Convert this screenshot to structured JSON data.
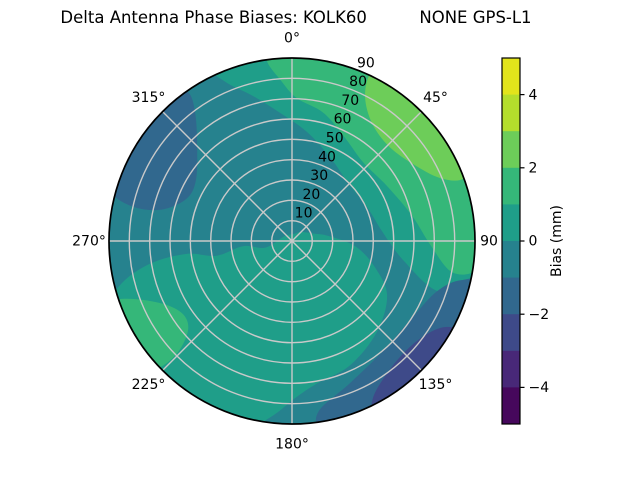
{
  "title": "Delta Antenna Phase Biases: KOLK60          NONE GPS-L1",
  "chart_data": {
    "type": "heatmap",
    "subtype": "filled-contour-polar",
    "title": "Delta Antenna Phase Biases: KOLK60          NONE GPS-L1",
    "station": "KOLK60",
    "signal": "NONE GPS-L1",
    "angular_axis": {
      "direction": "clockwise",
      "zero_location": "top",
      "tick_labels": [
        {
          "az": 0,
          "label": "0°"
        },
        {
          "az": 45,
          "label": "45°"
        },
        {
          "az": 90,
          "label": "90"
        },
        {
          "az": 135,
          "label": "135°"
        },
        {
          "az": 180,
          "label": "180°"
        },
        {
          "az": 225,
          "label": "225°"
        },
        {
          "az": 270,
          "label": "270°"
        },
        {
          "az": 315,
          "label": "315°"
        }
      ]
    },
    "radial_axis": {
      "min": 0,
      "max": 90,
      "tick_values": [
        10,
        20,
        30,
        40,
        50,
        60,
        70,
        80,
        90
      ],
      "tick_labels": [
        "10",
        "20",
        "30",
        "40",
        "50",
        "60",
        "70",
        "80",
        "90"
      ],
      "label_azimuth_deg": 22.5
    },
    "colorbar": {
      "label": "Bias (mm)",
      "vmin": -5,
      "vmax": 5,
      "tick_values": [
        4,
        2,
        0,
        -2,
        -4
      ],
      "tick_labels": [
        "4",
        "2",
        "0",
        "−2",
        "−4"
      ],
      "colormap": "viridis",
      "n_bands": 10,
      "band_colors_bottom_to_top": [
        "#46085c",
        "#482878",
        "#3e4a89",
        "#31688e",
        "#26828e",
        "#1f9e89",
        "#35b779",
        "#6dcd59",
        "#b4de2c",
        "#e2e41b"
      ]
    },
    "grid": {
      "rings": 8,
      "spokes_every_deg": 45,
      "color": "#c9c9c9"
    },
    "base_field": {
      "name": "bias-minus1-to-0-background",
      "bias_range_mm": [
        -1,
        0
      ],
      "color": "#26828e"
    },
    "regions": [
      {
        "name": "bias-0-to-1-south",
        "bias_range_mm": [
          0,
          1
        ],
        "color": "#1f9e89",
        "points_az_rfrac": [
          [
            70,
            0.12
          ],
          [
            82,
            0.2
          ],
          [
            95,
            0.35
          ],
          [
            108,
            0.48
          ],
          [
            120,
            0.6
          ],
          [
            137,
            0.68
          ],
          [
            155,
            0.75
          ],
          [
            170,
            0.79
          ],
          [
            179,
            0.86
          ],
          [
            187,
            0.97
          ],
          [
            197,
            1.1
          ],
          [
            215,
            1.12
          ],
          [
            236,
            1.12
          ],
          [
            249,
            1.09
          ],
          [
            256,
            0.96
          ],
          [
            261,
            0.78
          ],
          [
            263,
            0.58
          ],
          [
            259,
            0.42
          ],
          [
            264,
            0.27
          ],
          [
            256,
            0.15
          ],
          [
            300,
            0.05
          ],
          [
            15,
            0.04
          ],
          [
            45,
            0.07
          ]
        ]
      },
      {
        "name": "bias-0-to-1-north-rim-band",
        "bias_range_mm": [
          0,
          1
        ],
        "color": "#1f9e89",
        "points_az_rfrac": [
          [
            334,
            1.1
          ],
          [
            350,
            1.12
          ],
          [
            20,
            1.12
          ],
          [
            60,
            1.12
          ],
          [
            95,
            1.1
          ],
          [
            105,
            1.04
          ],
          [
            109,
            0.84
          ],
          [
            100,
            0.62
          ],
          [
            85,
            0.5
          ],
          [
            65,
            0.45
          ],
          [
            45,
            0.44
          ],
          [
            25,
            0.5
          ],
          [
            8,
            0.6
          ],
          [
            355,
            0.7
          ],
          [
            345,
            0.82
          ],
          [
            337,
            0.95
          ]
        ]
      },
      {
        "name": "bias-1-to-2-northeast",
        "bias_range_mm": [
          1,
          2
        ],
        "color": "#35b779",
        "points_az_rfrac": [
          [
            354,
            1.1
          ],
          [
            20,
            1.12
          ],
          [
            60,
            1.12
          ],
          [
            90,
            1.1
          ],
          [
            99,
            1.02
          ],
          [
            101,
            0.89
          ],
          [
            92,
            0.76
          ],
          [
            78,
            0.67
          ],
          [
            60,
            0.6
          ],
          [
            42,
            0.58
          ],
          [
            28,
            0.63
          ],
          [
            14,
            0.72
          ],
          [
            2,
            0.78
          ],
          [
            356,
            0.88
          ],
          [
            352,
            1.0
          ]
        ]
      },
      {
        "name": "bias-2-to-3-northeast",
        "bias_range_mm": [
          2,
          3
        ],
        "color": "#6dcd59",
        "points_az_rfrac": [
          [
            27,
            1.1
          ],
          [
            45,
            1.12
          ],
          [
            65,
            1.1
          ],
          [
            70,
            1.0
          ],
          [
            67,
            0.88
          ],
          [
            57,
            0.78
          ],
          [
            45,
            0.74
          ],
          [
            34,
            0.78
          ],
          [
            27,
            0.88
          ],
          [
            25,
            1.0
          ]
        ]
      },
      {
        "name": "bias-minus2-to-minus1-northwest",
        "bias_range_mm": [
          -2,
          -1
        ],
        "color": "#31688e",
        "points_az_rfrac": [
          [
            288,
            1.1
          ],
          [
            305,
            1.12
          ],
          [
            320,
            1.1
          ],
          [
            325,
            1.0
          ],
          [
            323,
            0.88
          ],
          [
            314,
            0.72
          ],
          [
            302,
            0.62
          ],
          [
            292,
            0.62
          ],
          [
            284,
            0.72
          ],
          [
            282,
            0.86
          ],
          [
            284,
            1.0
          ]
        ]
      },
      {
        "name": "bias-minus2-to-minus1-southeast",
        "bias_range_mm": [
          -2,
          -1
        ],
        "color": "#31688e",
        "points_az_rfrac": [
          [
            103,
            1.1
          ],
          [
            130,
            1.12
          ],
          [
            160,
            1.12
          ],
          [
            171,
            1.04
          ],
          [
            171,
            0.94
          ],
          [
            158,
            0.84
          ],
          [
            140,
            0.78
          ],
          [
            122,
            0.78
          ],
          [
            109,
            0.84
          ],
          [
            103,
            0.95
          ]
        ]
      },
      {
        "name": "bias-minus3-to-minus2-southeast",
        "bias_range_mm": [
          -3,
          -2
        ],
        "color": "#3e4a89",
        "points_az_rfrac": [
          [
            120,
            1.1
          ],
          [
            140,
            1.12
          ],
          [
            155,
            1.1
          ],
          [
            153,
            0.97
          ],
          [
            142,
            0.88
          ],
          [
            130,
            0.87
          ],
          [
            121,
            0.93
          ],
          [
            118,
            1.02
          ]
        ]
      },
      {
        "name": "bias-1-to-2-southwest",
        "bias_range_mm": [
          1,
          2
        ],
        "color": "#35b779",
        "points_az_rfrac": [
          [
            229,
            1.1
          ],
          [
            240,
            1.12
          ],
          [
            251,
            1.1
          ],
          [
            251,
            0.97
          ],
          [
            245,
            0.8
          ],
          [
            237,
            0.72
          ],
          [
            230,
            0.74
          ],
          [
            226,
            0.85
          ],
          [
            226,
            0.98
          ]
        ]
      }
    ]
  }
}
